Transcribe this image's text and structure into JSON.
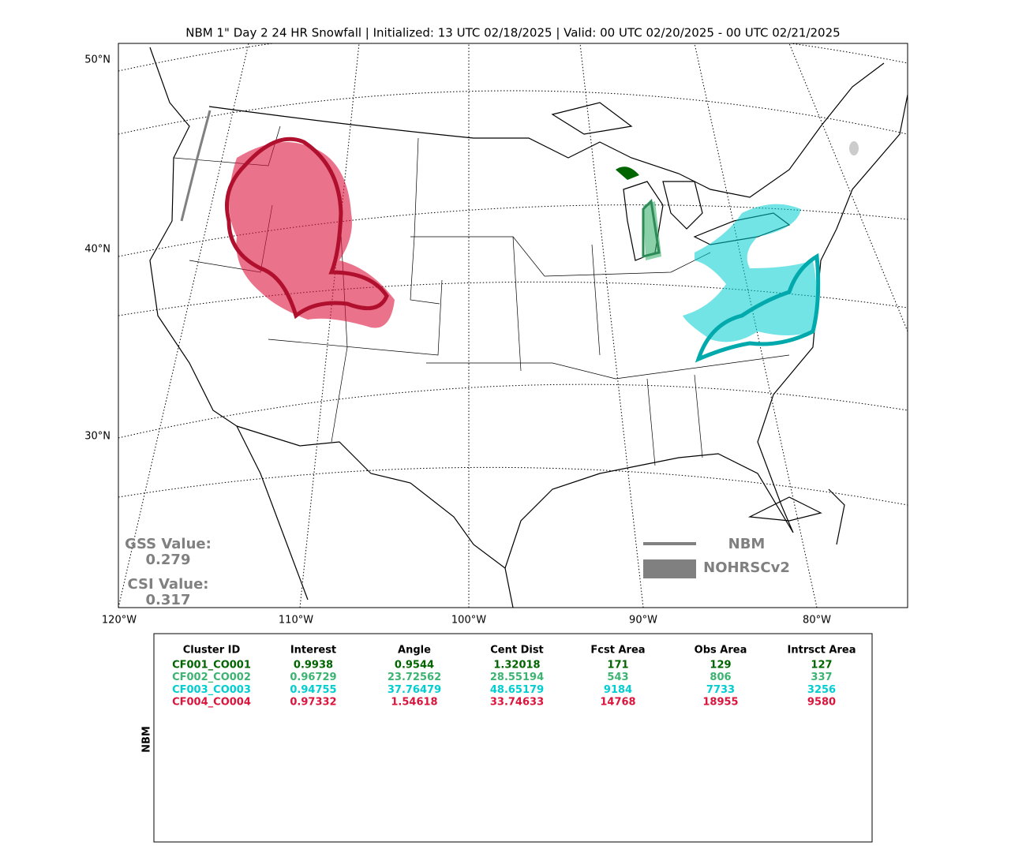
{
  "title": "NBM 1\" Day 2 24 HR Snowfall | Initialized: 13 UTC 02/18/2025 | Valid: 00 UTC 02/20/2025 - 00 UTC 02/21/2025",
  "map": {
    "lat_labels": [
      "50°N",
      "40°N",
      "30°N"
    ],
    "lon_labels": [
      "120°W",
      "110°W",
      "100°W",
      "90°W",
      "80°W"
    ]
  },
  "stats": {
    "gss_label": "GSS Value:",
    "gss_value": "0.279",
    "csi_label": "CSI Value:",
    "csi_value": "0.317"
  },
  "legend": {
    "forecast": "NBM",
    "observed": "NOHRSCv2"
  },
  "table": {
    "side_label": "NBM",
    "header": [
      "Cluster ID",
      "Interest",
      "Angle",
      "Cent Dist",
      "Fcst Area",
      "Obs Area",
      "Intrsct Area"
    ],
    "row_colors": [
      "#006400",
      "#3cb371",
      "#00ced1",
      "#dc143c"
    ],
    "rows": [
      [
        "CF001_CO001",
        "0.9938",
        "0.9544",
        "1.32018",
        "171",
        "129",
        "127"
      ],
      [
        "CF002_CO002",
        "0.96729",
        "23.72562",
        "28.55194",
        "543",
        "806",
        "337"
      ],
      [
        "CF003_CO003",
        "0.94755",
        "37.76479",
        "48.65179",
        "9184",
        "7733",
        "3256"
      ],
      [
        "CF004_CO004",
        "0.97332",
        "1.54618",
        "33.74633",
        "14768",
        "18955",
        "9580"
      ]
    ]
  }
}
